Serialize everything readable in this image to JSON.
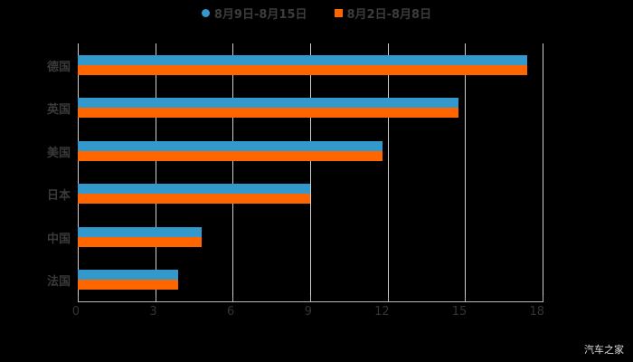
{
  "chart_data": {
    "type": "bar",
    "orientation": "horizontal",
    "title": "",
    "categories": [
      "德国",
      "英国",
      "美国",
      "日本",
      "中国",
      "法国"
    ],
    "series": [
      {
        "name": "8月9日-8月15日",
        "color": "#3399cc",
        "values": [
          17.4,
          14.75,
          11.8,
          9.0,
          4.8,
          3.9
        ]
      },
      {
        "name": "8月2日-8月8日",
        "color": "#ff6600",
        "values": [
          17.4,
          14.75,
          11.8,
          9.0,
          4.8,
          3.9
        ]
      }
    ],
    "xlabel": "",
    "ylabel": "",
    "xlim": [
      0,
      18
    ],
    "xticks": [
      0,
      3,
      6,
      9,
      12,
      15,
      18
    ],
    "grid": true,
    "legend_position": "top"
  },
  "legend": [
    {
      "label": "8月9日-8月15日",
      "color": "#3399cc",
      "shape": "circle"
    },
    {
      "label": "8月2日-8月8日",
      "color": "#ff6600",
      "shape": "square"
    }
  ],
  "watermark": "汽车之家"
}
